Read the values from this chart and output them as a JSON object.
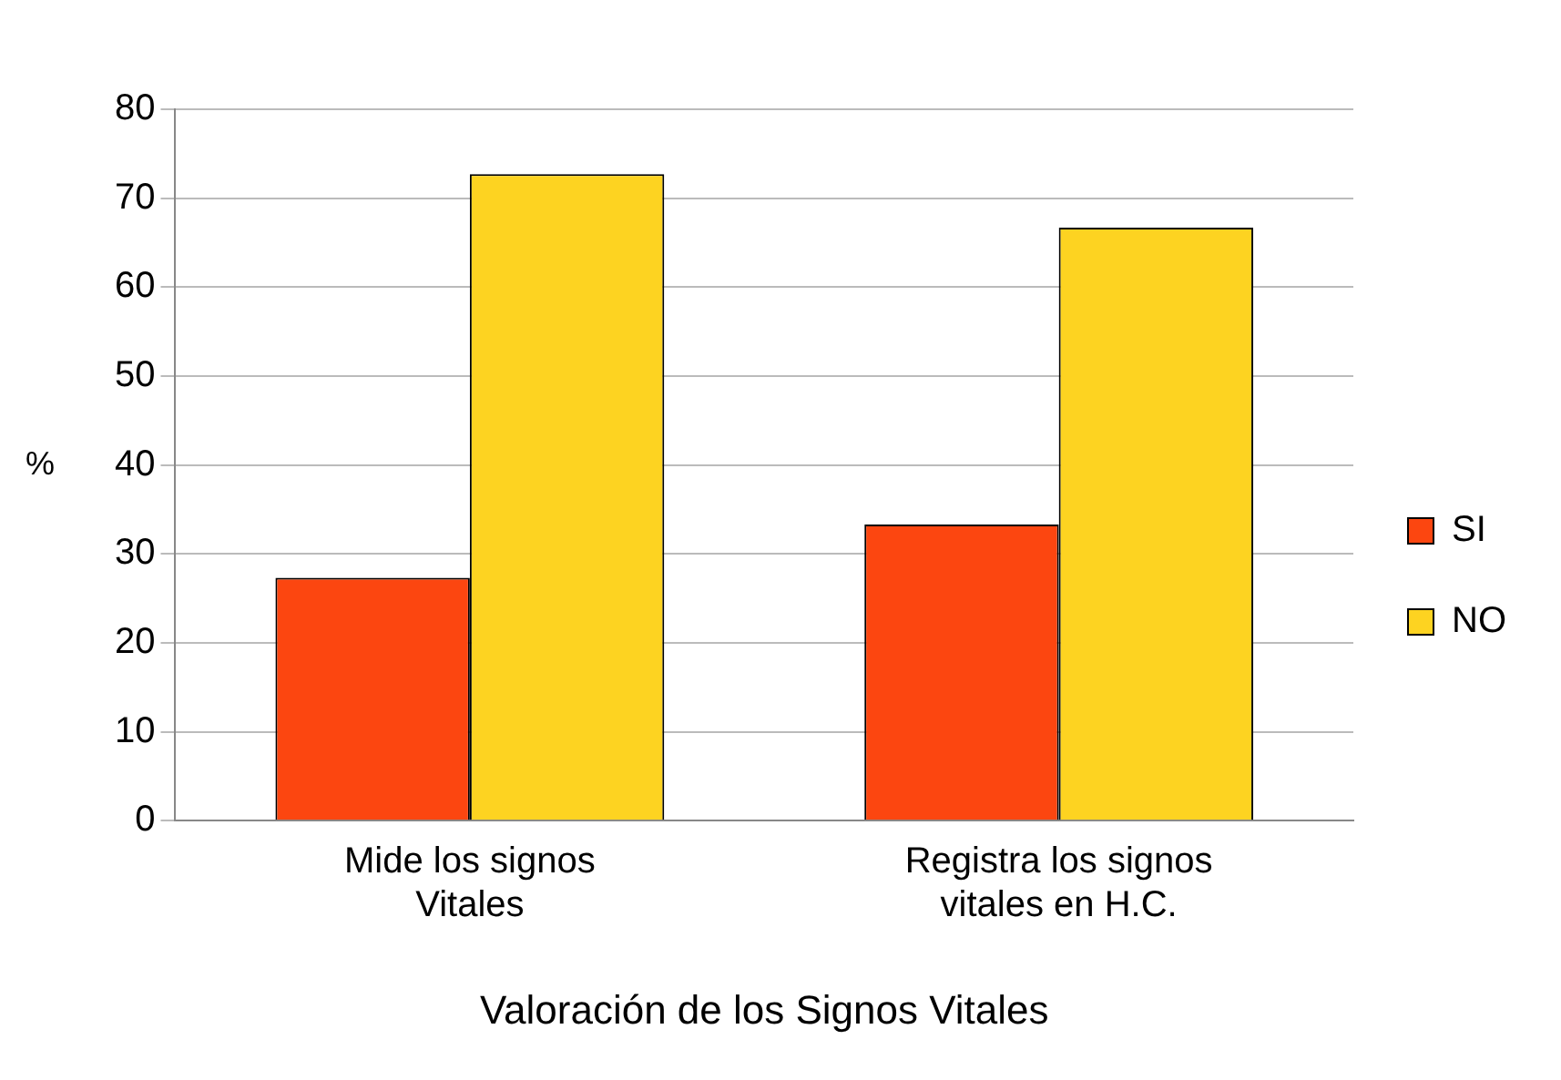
{
  "chart_data": {
    "type": "bar",
    "xlabel": "Valoración de los Signos Vitales",
    "ylabel": "%",
    "categories": [
      "Mide los signos Vitales",
      "Registra los signos vitales en H.C."
    ],
    "series": [
      {
        "name": "SI",
        "color": "#fc4610",
        "values": [
          27.3,
          33.3
        ]
      },
      {
        "name": "NO",
        "color": "#fdd321",
        "values": [
          72.7,
          66.7
        ]
      }
    ],
    "ylim": [
      0,
      80
    ],
    "yticks": [
      0,
      10,
      20,
      30,
      40,
      50,
      60,
      70,
      80
    ],
    "grid": "y",
    "legend": "right"
  }
}
